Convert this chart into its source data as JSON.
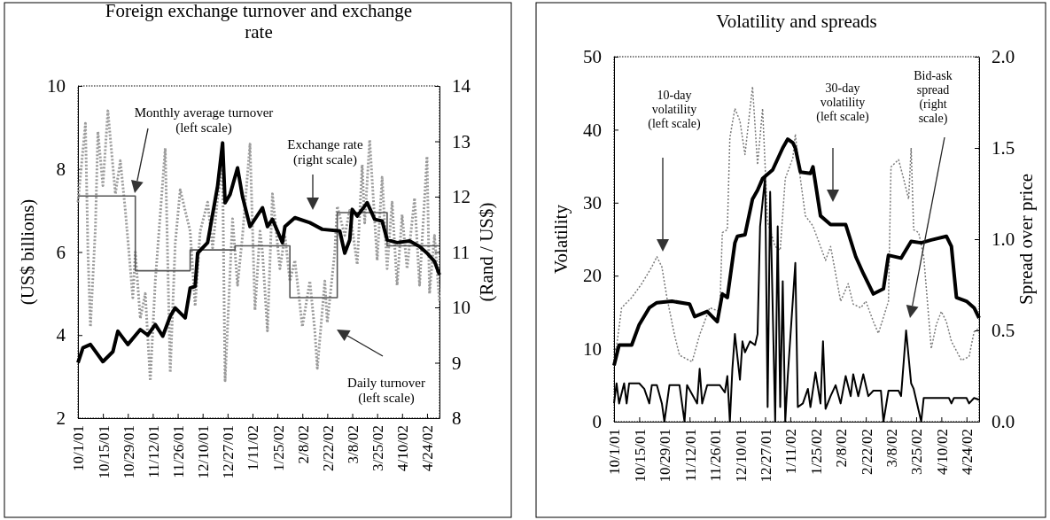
{
  "chart_data": [
    {
      "type": "line",
      "title": "Foreign exchange turnover and exchange rate",
      "ylabel": "(US$ billions)",
      "y2label": "(Rand / US$)",
      "categories": [
        "10/1/01",
        null,
        null,
        null,
        null,
        null,
        null,
        null,
        null,
        null,
        "10/15/01",
        null,
        null,
        null,
        null,
        null,
        null,
        null,
        null,
        null,
        "10/29/01",
        null,
        null,
        null,
        null,
        null,
        null,
        null,
        null,
        null,
        "11/12/01",
        null,
        null,
        null,
        null,
        null,
        null,
        null,
        null,
        null,
        "11/26/01",
        null,
        null,
        null,
        null,
        null,
        null,
        null,
        null,
        null,
        "12/10/01",
        null,
        null,
        null,
        null,
        null,
        null,
        null,
        null,
        null,
        "12/27/01",
        null,
        null,
        null,
        null,
        null,
        null,
        null,
        null,
        null,
        "1/11/02",
        null,
        null,
        null,
        null,
        null,
        null,
        null,
        null,
        null,
        "1/25/02",
        null,
        null,
        null,
        null,
        null,
        null,
        null,
        null,
        null,
        "2/8/02",
        null,
        null,
        null,
        null,
        null,
        null,
        null,
        null,
        null,
        "2/22/02",
        null,
        null,
        null,
        null,
        null,
        null,
        null,
        null,
        null,
        "3/8/02",
        null,
        null,
        null,
        null,
        null,
        null,
        null,
        null,
        null,
        "3/25/02",
        null,
        null,
        null,
        null,
        null,
        null,
        null,
        null,
        null,
        "4/10/02",
        null,
        null,
        null,
        null,
        null,
        null,
        null,
        null,
        null,
        "4/24/02",
        null,
        null,
        null,
        null,
        null
      ],
      "ylim": [
        2,
        10
      ],
      "yticks": [
        2,
        4,
        6,
        8,
        10
      ],
      "y2lim": [
        8,
        14
      ],
      "y2ticks": [
        8,
        9,
        10,
        11,
        12,
        13,
        14
      ],
      "series": [
        {
          "color": "#9a9a9a",
          "line_style": "dotted",
          "values": [
            7.2,
            null,
            null,
            9.1,
            6.0,
            4.2,
            null,
            6.6,
            8.9,
            null,
            7.6,
            null,
            9.4,
            null,
            null,
            7.4,
            null,
            8.2,
            null,
            7.0,
            null,
            null,
            4.9,
            6.0,
            null,
            4.4,
            null,
            5.0,
            null,
            2.9,
            null,
            5.3,
            null,
            null,
            null,
            8.5,
            null,
            3.1,
            null,
            6.2,
            null,
            7.5,
            null,
            null,
            null,
            6.5,
            null,
            4.7,
            null,
            6.5,
            null,
            null,
            7.2,
            null,
            6.1,
            null,
            7.3,
            null,
            8.0,
            2.9,
            null,
            null,
            6.8,
            null,
            5.2,
            null,
            6.4,
            null,
            null,
            8.6,
            null,
            4.6,
            null,
            6.5,
            6.0,
            null,
            4.1,
            null,
            7.4,
            null,
            null,
            5.6,
            null,
            6.4,
            null,
            5.3,
            null,
            5.8,
            null,
            null,
            4.2,
            null,
            null,
            5.3,
            null,
            4.1,
            3.2,
            null,
            null,
            5.3,
            4.3,
            null,
            null,
            6.0,
            7.1,
            null,
            null,
            6.4,
            null,
            7.0,
            null,
            null,
            5.7,
            null,
            8.1,
            6.7,
            null,
            8.7,
            null,
            null,
            5.8,
            null,
            7.8,
            null,
            5.6,
            null,
            7.2,
            null,
            5.2,
            null,
            6.9,
            null,
            5.6,
            null,
            null,
            7.3,
            null,
            5.2,
            null,
            null,
            8.3,
            5.0,
            null,
            6.4,
            null,
            4.8
          ]
        },
        {
          "type": "step",
          "color": "#555555",
          "values": [
            7.35,
            null,
            null,
            null,
            null,
            null,
            null,
            null,
            null,
            null,
            null,
            null,
            null,
            null,
            null,
            null,
            null,
            null,
            null,
            null,
            null,
            null,
            null,
            5.55,
            null,
            null,
            null,
            null,
            null,
            null,
            null,
            null,
            null,
            null,
            null,
            null,
            null,
            null,
            null,
            null,
            null,
            null,
            null,
            null,
            null,
            6.05,
            null,
            null,
            null,
            null,
            null,
            null,
            null,
            null,
            null,
            null,
            null,
            null,
            null,
            null,
            null,
            null,
            null,
            6.15,
            null,
            null,
            null,
            null,
            null,
            null,
            null,
            null,
            null,
            null,
            null,
            null,
            null,
            null,
            null,
            null,
            null,
            null,
            null,
            null,
            null,
            4.9,
            null,
            null,
            null,
            null,
            null,
            null,
            null,
            null,
            null,
            null,
            null,
            null,
            null,
            null,
            null,
            null,
            null,
            null,
            6.95,
            null,
            null,
            null,
            null,
            null,
            null,
            null,
            null,
            null,
            null,
            null,
            null,
            null,
            null,
            null,
            null,
            null,
            null,
            null,
            6.15,
            null,
            null,
            null,
            null,
            null,
            null,
            null,
            null,
            null,
            null,
            null,
            null,
            null,
            null,
            null,
            null,
            null,
            null,
            null,
            null,
            6.15
          ]
        },
        {
          "color": "#000000",
          "axis": "y2",
          "values": [
            9.0,
            null,
            9.27,
            null,
            null,
            9.33,
            null,
            null,
            null,
            null,
            9.02,
            null,
            null,
            null,
            9.2,
            null,
            9.57,
            null,
            null,
            null,
            9.33,
            null,
            null,
            null,
            null,
            9.6,
            null,
            null,
            9.5,
            null,
            null,
            9.69,
            null,
            null,
            9.48,
            null,
            null,
            9.84,
            null,
            9.99,
            null,
            null,
            null,
            9.81,
            null,
            10.35,
            null,
            10.38,
            10.98,
            null,
            null,
            null,
            11.17,
            null,
            null,
            null,
            12.19,
            null,
            12.97,
            11.89,
            null,
            12.04,
            null,
            null,
            12.52,
            null,
            12.0,
            null,
            null,
            11.46,
            null,
            null,
            null,
            null,
            11.8,
            null,
            11.46,
            null,
            11.59,
            null,
            null,
            null,
            11.17,
            11.46,
            null,
            null,
            null,
            11.62,
            null,
            null,
            null,
            null,
            null,
            11.53,
            null,
            null,
            null,
            null,
            11.41,
            null,
            null,
            null,
            null,
            null,
            null,
            11.38,
            null,
            10.98,
            null,
            11.22,
            11.77,
            null,
            11.65,
            null,
            null,
            null,
            11.89,
            null,
            null,
            11.59,
            null,
            null,
            11.56,
            null,
            11.22,
            null,
            null,
            null,
            11.17,
            null,
            null,
            null,
            null,
            11.2,
            null,
            null,
            null,
            11.1,
            null,
            null,
            10.98,
            null,
            null,
            10.83,
            null,
            10.59
          ]
        }
      ],
      "annotations": [
        "Monthly average turnover (left scale)",
        "Exchange rate (right scale)",
        "Daily turnover (left scale)"
      ]
    },
    {
      "type": "line",
      "title": "Volatility and spreads",
      "ylabel": "Volatility",
      "y2label": "Spread over price",
      "categories": [
        "10/1/01",
        null,
        null,
        null,
        null,
        null,
        null,
        null,
        null,
        null,
        "10/15/01",
        null,
        null,
        null,
        null,
        null,
        null,
        null,
        null,
        null,
        "10/29/01",
        null,
        null,
        null,
        null,
        null,
        null,
        null,
        null,
        null,
        "11/12/01",
        null,
        null,
        null,
        null,
        null,
        null,
        null,
        null,
        null,
        "11/26/01",
        null,
        null,
        null,
        null,
        null,
        null,
        null,
        null,
        null,
        "12/10/01",
        null,
        null,
        null,
        null,
        null,
        null,
        null,
        null,
        null,
        "12/27/01",
        null,
        null,
        null,
        null,
        null,
        null,
        null,
        null,
        null,
        "1/11/02",
        null,
        null,
        null,
        null,
        null,
        null,
        null,
        null,
        null,
        "1/25/02",
        null,
        null,
        null,
        null,
        null,
        null,
        null,
        null,
        null,
        "2/8/02",
        null,
        null,
        null,
        null,
        null,
        null,
        null,
        null,
        null,
        "2/22/02",
        null,
        null,
        null,
        null,
        null,
        null,
        null,
        null,
        null,
        "3/8/02",
        null,
        null,
        null,
        null,
        null,
        null,
        null,
        null,
        null,
        "3/25/02",
        null,
        null,
        null,
        null,
        null,
        null,
        null,
        null,
        null,
        "4/10/02",
        null,
        null,
        null,
        null,
        null,
        null,
        null,
        null,
        null,
        "4/24/02",
        null,
        null,
        null,
        null,
        null
      ],
      "ylim": [
        0,
        50
      ],
      "yticks": [
        0,
        10,
        20,
        30,
        40,
        50
      ],
      "y2lim": [
        0,
        2
      ],
      "y2ticks": [
        {
          "value": 0,
          "label": "0.0"
        },
        {
          "value": 0.5,
          "label": "0.5"
        },
        {
          "value": 1,
          "label": "1.0"
        },
        {
          "value": 1.5,
          "label": "1.5"
        },
        {
          "value": 2,
          "label": "2.0"
        }
      ],
      "series": [
        {
          "color": "#7a7a7a",
          "line_style": "dotted",
          "values": [
            7.7,
            null,
            null,
            15.6,
            null,
            null,
            null,
            17,
            null,
            null,
            null,
            18.9,
            null,
            null,
            null,
            21.2,
            null,
            22.6,
            null,
            21.2,
            null,
            17,
            null,
            null,
            11.9,
            null,
            9.1,
            null,
            null,
            null,
            null,
            8.2,
            null,
            null,
            11.9,
            null,
            null,
            null,
            15.6,
            null,
            null,
            null,
            15.1,
            25.9,
            null,
            26.3,
            38.9,
            null,
            42.9,
            null,
            41.2,
            null,
            36.6,
            null,
            null,
            45.9,
            null,
            35.2,
            null,
            42.9,
            null,
            27.3,
            null,
            null,
            24,
            null,
            23.5,
            null,
            33.3,
            null,
            null,
            36.1,
            39.4,
            null,
            33.3,
            null,
            28.2,
            null,
            null,
            26.8,
            null,
            null,
            24,
            null,
            22.1,
            null,
            24,
            null,
            20.3,
            null,
            16.5,
            null,
            null,
            18.9,
            null,
            16.1,
            null,
            null,
            15.6,
            null,
            16.5,
            null,
            null,
            13.7,
            null,
            12.1,
            null,
            null,
            null,
            16.5,
            34.9,
            null,
            null,
            35.9,
            null,
            33.3,
            null,
            30.5,
            37.5,
            26.3,
            null,
            25.9,
            null,
            22.6,
            null,
            14.2,
            10,
            null,
            13.3,
            null,
            15.1,
            null,
            13.7,
            null,
            11,
            null,
            null,
            null,
            8.4,
            null,
            null,
            8.9,
            null,
            12.3,
            null,
            12.8
          ]
        },
        {
          "color": "#000000",
          "values": [
            7.7,
            null,
            10.5,
            null,
            null,
            null,
            null,
            10.5,
            null,
            null,
            13.3,
            null,
            null,
            null,
            15.6,
            null,
            null,
            16.3,
            null,
            null,
            null,
            null,
            null,
            16.5,
            null,
            null,
            null,
            null,
            null,
            null,
            16.1,
            null,
            14.4,
            null,
            null,
            null,
            null,
            15.1,
            null,
            null,
            null,
            13.7,
            null,
            17.5,
            null,
            17,
            null,
            null,
            24.5,
            25.4,
            null,
            null,
            25.6,
            null,
            null,
            30.5,
            null,
            31.7,
            null,
            33.3,
            null,
            null,
            null,
            34.5,
            null,
            null,
            null,
            37.5,
            null,
            38.7,
            null,
            38.2,
            37.5,
            null,
            34.2,
            null,
            null,
            null,
            34,
            34.9,
            null,
            null,
            28.2,
            null,
            null,
            null,
            27,
            null,
            null,
            null,
            null,
            null,
            27,
            null,
            null,
            null,
            22.6,
            null,
            null,
            20.3,
            null,
            null,
            null,
            17.5,
            null,
            null,
            null,
            18.2,
            null,
            22.8,
            null,
            null,
            null,
            null,
            22.4,
            null,
            null,
            null,
            24.7,
            null,
            null,
            null,
            24.5,
            null,
            null,
            null,
            24.9,
            null,
            null,
            null,
            null,
            null,
            25.4,
            null,
            24,
            null,
            17,
            null,
            null,
            null,
            16.5,
            null,
            null,
            15.6,
            null,
            14.2
          ]
        },
        {
          "color": "#000000",
          "axis": "y2",
          "values": [
            0.1,
            0.21,
            0.1,
            null,
            0.21,
            0.1,
            0.21,
            null,
            null,
            null,
            0.21,
            null,
            0.18,
            null,
            0.1,
            0.2,
            null,
            0.2,
            null,
            0.1,
            0,
            null,
            0.2,
            null,
            null,
            null,
            0.2,
            null,
            0,
            0.2,
            null,
            null,
            null,
            0.1,
            0.29,
            0.1,
            null,
            0.2,
            null,
            null,
            null,
            null,
            0.2,
            null,
            0.16,
            0.25,
            0,
            0.29,
            0.48,
            null,
            0.23,
            0.44,
            0.38,
            null,
            0.44,
            null,
            0.42,
            0.48,
            1.07,
            null,
            1.34,
            0.08,
            1.26,
            null,
            0,
            1.07,
            0.08,
            0.77,
            0,
            0.25,
            null,
            null,
            0.87,
            0.08,
            null,
            0.1,
            null,
            0.18,
            0.08,
            null,
            0.27,
            null,
            0.1,
            0.44,
            0.07,
            null,
            0.14,
            null,
            0.2,
            null,
            0.1,
            null,
            0.25,
            null,
            0.14,
            0.26,
            null,
            0.14,
            null,
            0.26,
            null,
            0.14,
            null,
            0.17,
            null,
            null,
            0.17,
            0,
            null,
            0.17,
            null,
            null,
            null,
            0.17,
            0.14,
            null,
            0.5,
            null,
            0.21,
            0.18,
            null,
            null,
            0,
            0.13,
            null,
            null,
            null,
            null,
            null,
            null,
            null,
            null,
            null,
            0.13,
            0.1,
            0.13,
            null,
            null,
            null,
            null,
            0.13,
            0.1,
            null,
            0.13,
            null,
            0.12
          ]
        }
      ],
      "annotations": [
        "10-day volatility (left scale)",
        "30-day volatility (left scale)",
        "Bid-ask spread (right scale)"
      ]
    }
  ]
}
